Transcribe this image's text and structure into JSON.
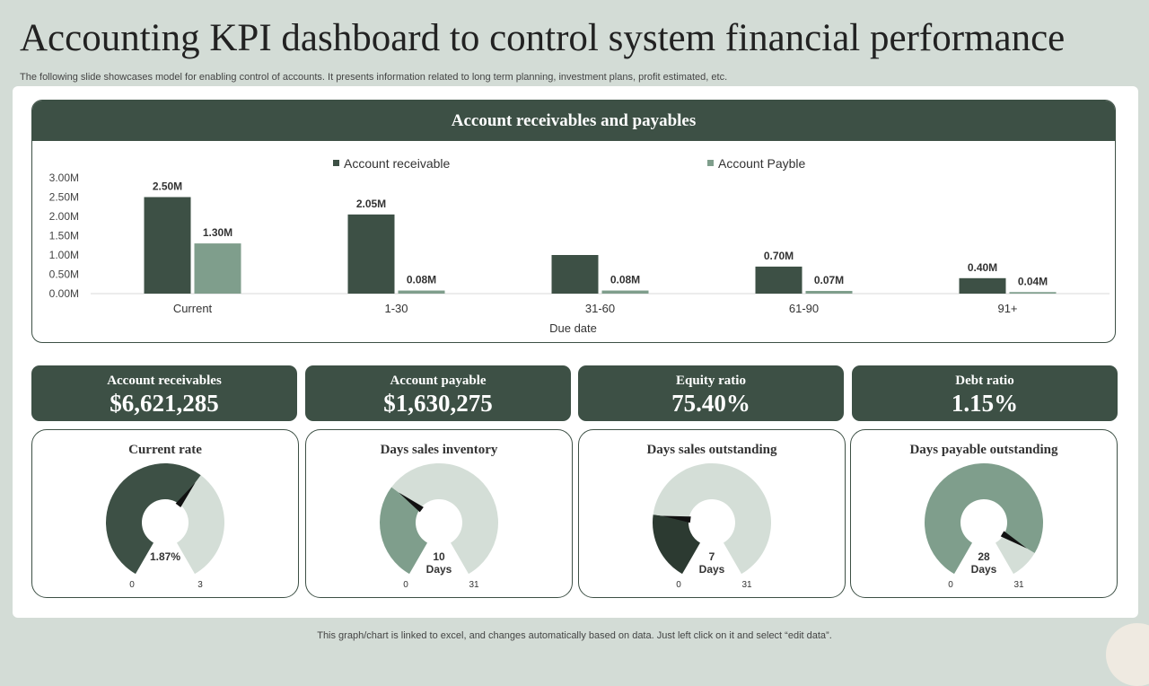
{
  "title": "Accounting KPI dashboard to control system financial performance",
  "subtitle": "The following slide showcases model for enabling control of accounts. It presents information related to long term planning, investment plans, profit estimated, etc.",
  "footer": "This graph/chart is linked to excel,  and changes automatically based on data. Just left click on it and select “edit data”.",
  "colors": {
    "dark": "#3d5045",
    "medium": "#7f9e8c",
    "light": "#d4ded7",
    "darkest": "#2c3a31"
  },
  "chart_data": {
    "type": "bar",
    "title": "Account receivables and payables",
    "categories": [
      "Current",
      "1-30",
      "31-60",
      "61-90",
      "91+"
    ],
    "series": [
      {
        "name": "Account receivable",
        "values": [
          2.5,
          2.05,
          1.0,
          0.7,
          0.4
        ],
        "labels": [
          "2.50M",
          "2.05M",
          "",
          "0.70M",
          "0.40M"
        ]
      },
      {
        "name": "Account Payble",
        "values": [
          1.3,
          0.08,
          0.08,
          0.07,
          0.04
        ],
        "labels": [
          "1.30M",
          "0.08M",
          "0.08M",
          "0.07M",
          "0.04M"
        ]
      }
    ],
    "xlabel": "Due date",
    "ylabel": "",
    "ylim": [
      0,
      3
    ],
    "yticks": [
      "0.00M",
      "0.50M",
      "1.00M",
      "1.50M",
      "2.00M",
      "2.50M",
      "3.00M"
    ],
    "legend": "top"
  },
  "kpis": [
    {
      "label": "Account  receivables",
      "value": "$6,621,285"
    },
    {
      "label": "Account  payable",
      "value": "$1,630,275"
    },
    {
      "label": "Equity  ratio",
      "value": "75.40%"
    },
    {
      "label": "Debt ratio",
      "value": "1.15%"
    }
  ],
  "gauges": [
    {
      "title": "Current  rate",
      "min": "0",
      "max": "3",
      "value": 1.87,
      "fill": "dark",
      "rest": "light",
      "center": [
        "1.87%"
      ]
    },
    {
      "title": "Days sales inventory",
      "min": "0",
      "max": "31",
      "value": 10,
      "fill": "medium",
      "rest": "light",
      "center": [
        "10",
        "Days"
      ]
    },
    {
      "title": "Days sales outstanding",
      "min": "0",
      "max": "31",
      "value": 7,
      "fill": "darkest",
      "rest": "light",
      "center": [
        "7",
        "Days"
      ]
    },
    {
      "title": "Days payable outstanding",
      "min": "0",
      "max": "31",
      "value": 28,
      "fill": "medium",
      "rest": "light",
      "center": [
        "28",
        "Days"
      ]
    }
  ]
}
